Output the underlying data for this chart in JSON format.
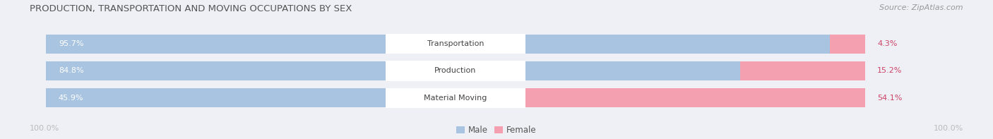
{
  "title": "PRODUCTION, TRANSPORTATION AND MOVING OCCUPATIONS BY SEX",
  "source": "Source: ZipAtlas.com",
  "categories": [
    "Transportation",
    "Production",
    "Material Moving"
  ],
  "male_pct": [
    95.7,
    84.8,
    45.9
  ],
  "female_pct": [
    4.3,
    15.2,
    54.1
  ],
  "male_color": "#a8c4e0",
  "female_color": "#f4a0b0",
  "bar_bg_color": "#e2e6ee",
  "bg_color": "#eef0f5",
  "title_color": "#555555",
  "source_color": "#999999",
  "axis_label_color": "#bbbbbb",
  "male_pct_label_color": "#ffffff",
  "female_pct_label_color": "#cc4466",
  "cat_label_color": "#444444",
  "legend_male_color": "#a8c4e0",
  "legend_female_color": "#f4a0b0",
  "figsize": [
    14.06,
    1.97
  ],
  "dpi": 100
}
